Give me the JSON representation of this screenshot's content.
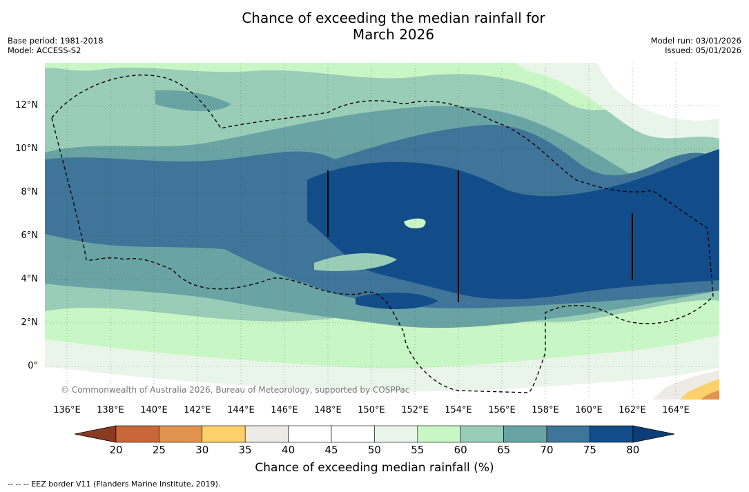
{
  "title": {
    "line1": "Chance of exceeding the median rainfall for",
    "line2": "March 2026"
  },
  "meta_left": {
    "base_period": "Base period: 1981-2018",
    "model": "Model: ACCESS-S2"
  },
  "meta_right": {
    "model_run": "Model run: 03/01/2026",
    "issued": "Issued: 05/01/2026"
  },
  "map": {
    "lat_labels": [
      "12°N",
      "10°N",
      "8°N",
      "6°N",
      "4°N",
      "2°N",
      "0°"
    ],
    "lon_labels": [
      "136°E",
      "138°E",
      "140°E",
      "142°E",
      "144°E",
      "146°E",
      "148°E",
      "150°E",
      "152°E",
      "154°E",
      "156°E",
      "158°E",
      "160°E",
      "162°E",
      "164°E"
    ],
    "copyright": "© Commonwealth of Australia 2026, Bureau of Meteorology, supported by COSPPac"
  },
  "colorbar": {
    "ticks": [
      "20",
      "25",
      "30",
      "35",
      "40",
      "45",
      "50",
      "55",
      "60",
      "65",
      "70",
      "75",
      "80"
    ],
    "colors": [
      "#a9492a",
      "#c9663a",
      "#e0934f",
      "#fdd06a",
      "#eeebe6",
      "#ffffff",
      "#ffffff",
      "#eaf5ea",
      "#c8f7c5",
      "#9acdb7",
      "#6aa3a3",
      "#3e7598",
      "#124d8a"
    ],
    "label": "Chance of exceeding median rainfall (%)"
  },
  "footer": "--  --  -- EEZ border V11 (Flanders Marine Institute, 2019)."
}
